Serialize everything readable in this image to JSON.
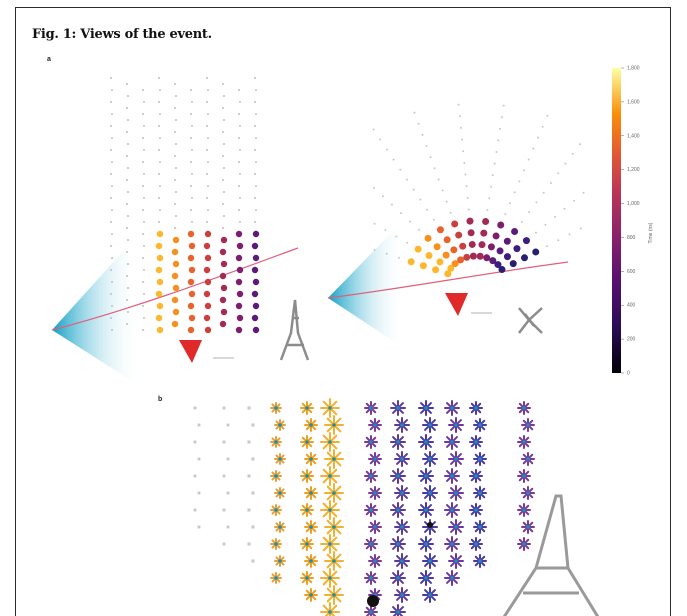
{
  "figure": {
    "title": "Fig. 1: Views of the event.",
    "panel_a_label": "a",
    "panel_b_label": "b"
  },
  "colorbar": {
    "title": "Time (ns)",
    "ticks": [
      "1,800",
      "1,600",
      "1,400",
      "1,200",
      "1,000",
      "800",
      "600",
      "400",
      "200",
      "0"
    ],
    "min": 0,
    "max": 1800,
    "colormap": "inferno"
  },
  "colors": {
    "cone_cyan": "#19a6c8",
    "track_pink": "#e0607a",
    "arrow_red": "#e02a2a",
    "frame": "#2b2b2b"
  }
}
